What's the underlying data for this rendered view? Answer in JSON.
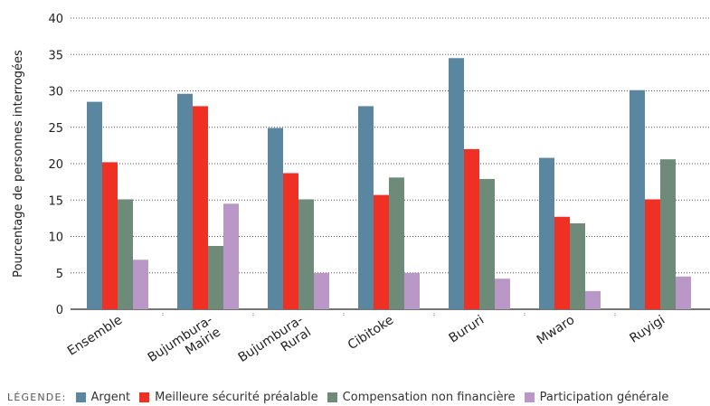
{
  "chart_data": {
    "type": "bar",
    "ylabel": "Pourcentage de personnes interrogées",
    "xlabel": "",
    "ylim": [
      0,
      40
    ],
    "yticks": [
      0,
      5,
      10,
      15,
      20,
      25,
      30,
      35,
      40
    ],
    "grid": "horizontal dotted",
    "legend_position": "bottom",
    "categories": [
      [
        "Ensemble"
      ],
      [
        "Bujumbura-",
        "Mairie"
      ],
      [
        "Bujumbura-",
        "Rural"
      ],
      [
        "Cibitoke"
      ],
      [
        "Bururi"
      ],
      [
        "Mwaro"
      ],
      [
        "Ruyigi"
      ]
    ],
    "series": [
      {
        "name": "Argent",
        "color": "#5b86a0",
        "values": [
          28.5,
          29.6,
          24.9,
          27.9,
          34.5,
          20.8,
          30.1
        ]
      },
      {
        "name": "Meilleure sécurité préalable",
        "color": "#ee3124",
        "values": [
          20.2,
          27.9,
          18.7,
          15.7,
          22.0,
          12.7,
          15.1
        ]
      },
      {
        "name": "Compensation non financière",
        "color": "#6e8a78",
        "values": [
          15.1,
          8.7,
          15.1,
          18.1,
          17.9,
          11.8,
          20.6
        ]
      },
      {
        "name": "Participation générale",
        "color": "#b998c8",
        "values": [
          6.8,
          14.5,
          5.0,
          5.0,
          4.2,
          2.5,
          4.5
        ]
      }
    ]
  },
  "legend": {
    "title": "LÉGENDE:"
  }
}
